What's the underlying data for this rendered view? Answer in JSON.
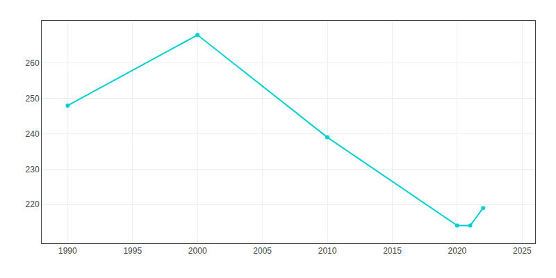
{
  "chart_data": {
    "type": "line",
    "x": [
      1990,
      2000,
      2010,
      2020,
      2021,
      2022
    ],
    "values": [
      248,
      268,
      239,
      214,
      214,
      219
    ],
    "color": "#00CED1",
    "marker": "circle",
    "xlim": [
      1988,
      2026
    ],
    "ylim": [
      209,
      272
    ],
    "xticks": [
      1990,
      1995,
      2000,
      2005,
      2010,
      2015,
      2020,
      2025
    ],
    "yticks": [
      220,
      230,
      240,
      250,
      260
    ],
    "grid": true
  }
}
